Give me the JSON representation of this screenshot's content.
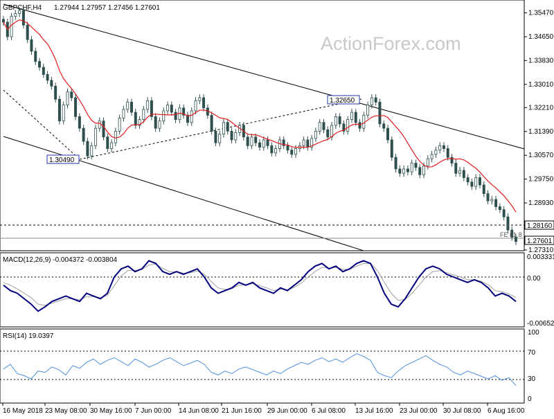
{
  "header": {
    "symbol": "GBPCHF,H4",
    "ohlc": "1.27944 1.27957 1.27456 1.27601"
  },
  "watermark": "ActionForex.com",
  "colors": {
    "candles": "#2f4f4f",
    "ma": "#e31a1c",
    "channel": "#000000",
    "macd_main": "#00007f",
    "macd_signal": "#a0a0a0",
    "rsi": "#4a90d9",
    "price_tag_bg": "#ffffff"
  },
  "chart_data": [
    {
      "type": "candlestick",
      "title": "GBPCHF,H4",
      "x_labels": [
        "16 May 2018",
        "23 May 08:00",
        "30 May 16:00",
        "7 Jun 00:00",
        "14 Jun 08:00",
        "21 Jun 16:00",
        "29 Jun 00:00",
        "6 Jul 08:00",
        "13 Jul 16:00",
        "23 Jul 00:00",
        "30 Jul 08:00",
        "6 Aug 16:00"
      ],
      "y_ticks": [
        "1.35470",
        "1.34650",
        "1.33830",
        "1.33010",
        "1.32210",
        "1.31390",
        "1.30570",
        "1.29750",
        "1.28930",
        "1.27310"
      ],
      "ylim": [
        1.2731,
        1.3589
      ],
      "price_tags": [
        {
          "label": "1.28160",
          "value": 1.2816
        },
        {
          "label": "1.27601",
          "value": 1.27601
        }
      ],
      "annotations": [
        {
          "label": "1.30490",
          "value": 1.3049
        },
        {
          "label": "1.32650",
          "value": 1.3265
        },
        {
          "label": "FE 61.8",
          "value": 1.2776
        }
      ],
      "closes": [
        1.3515,
        1.3465,
        1.3535,
        1.3545,
        1.3555,
        1.3505,
        1.3455,
        1.3415,
        1.338,
        1.336,
        1.3335,
        1.3315,
        1.3295,
        1.325,
        1.3175,
        1.323,
        1.3275,
        1.3255,
        1.319,
        1.315,
        1.3105,
        1.3055,
        1.309,
        1.315,
        1.3175,
        1.312,
        1.308,
        1.31,
        1.314,
        1.3185,
        1.3215,
        1.324,
        1.3205,
        1.316,
        1.318,
        1.3215,
        1.3245,
        1.319,
        1.315,
        1.3175,
        1.321,
        1.323,
        1.3205,
        1.318,
        1.322,
        1.3195,
        1.317,
        1.321,
        1.3245,
        1.3255,
        1.322,
        1.3195,
        1.314,
        1.31,
        1.313,
        1.317,
        1.314,
        1.311,
        1.3135,
        1.316,
        1.312,
        1.309,
        1.312,
        1.31,
        1.3085,
        1.311,
        1.309,
        1.3065,
        1.308,
        1.311,
        1.309,
        1.3075,
        1.306,
        1.308,
        1.309,
        1.311,
        1.3085,
        1.3115,
        1.314,
        1.317,
        1.3145,
        1.312,
        1.316,
        1.319,
        1.3165,
        1.314,
        1.318,
        1.3205,
        1.317,
        1.315,
        1.3195,
        1.323,
        1.3255,
        1.324,
        1.3165,
        1.315,
        1.311,
        1.305,
        1.301,
        1.2995,
        1.301,
        1.3,
        1.303,
        1.3015,
        1.299,
        1.302,
        1.3045,
        1.306,
        1.3075,
        1.309,
        1.308,
        1.305,
        1.303,
        1.2995,
        1.3005,
        1.298,
        1.2965,
        1.295,
        1.298,
        1.2955,
        1.2925,
        1.29,
        1.2905,
        1.288,
        1.287,
        1.2845,
        1.28,
        1.2775,
        1.276
      ]
    },
    {
      "type": "line",
      "title": "MACD(12,26,9) -0.004372 -0.003804",
      "y_ticks": [
        "0.003331",
        "0.00",
        "-0.006521"
      ],
      "ylim": [
        -0.006521,
        0.003331
      ],
      "series": [
        {
          "name": "",
          "values": [
            -0.0015,
            -0.0025,
            -0.003,
            -0.004,
            -0.005,
            -0.0063,
            -0.0055,
            -0.0045,
            -0.004,
            -0.0035,
            -0.004,
            -0.0045,
            -0.003,
            -0.0035,
            -0.004,
            -0.003,
            0.0,
            0.0015,
            0.002,
            0.001,
            0.0015,
            0.003,
            0.0025,
            0.001,
            0.0005,
            0.001,
            0.0005,
            0.001,
            0.0015,
            0.0,
            -0.002,
            -0.003,
            -0.0025,
            -0.002,
            -0.001,
            -0.0015,
            -0.001,
            -0.002,
            -0.0025,
            -0.003,
            -0.002,
            -0.0025,
            -0.0015,
            -0.0005,
            0.001,
            0.002,
            0.0025,
            0.0015,
            0.002,
            0.001,
            0.0015,
            0.0025,
            0.003,
            0.0025,
            0.0,
            -0.003,
            -0.005,
            -0.0055,
            -0.004,
            -0.002,
            0.0,
            0.0015,
            0.002,
            0.0015,
            0.0005,
            0.0,
            -0.0005,
            -0.001,
            -0.0005,
            -0.001,
            -0.002,
            -0.0035,
            -0.003,
            -0.0035,
            -0.0045
          ]
        },
        {
          "name": "",
          "values": [
            -0.001,
            -0.0015,
            -0.0022,
            -0.003,
            -0.0038,
            -0.005,
            -0.0052,
            -0.0048,
            -0.0044,
            -0.004,
            -0.004,
            -0.0042,
            -0.0036,
            -0.0036,
            -0.0038,
            -0.0034,
            -0.0016,
            0.0002,
            0.0012,
            0.0012,
            0.0014,
            0.0022,
            0.0024,
            0.0016,
            0.001,
            0.001,
            0.0007,
            0.0008,
            0.0011,
            0.0005,
            -0.0008,
            -0.002,
            -0.0023,
            -0.0021,
            -0.0015,
            -0.0015,
            -0.0012,
            -0.0016,
            -0.002,
            -0.0025,
            -0.0022,
            -0.0024,
            -0.0019,
            -0.0011,
            0.0,
            0.001,
            0.0018,
            0.0016,
            0.0018,
            0.0014,
            0.0014,
            0.002,
            0.0025,
            0.0025,
            0.0012,
            -0.001,
            -0.003,
            -0.0043,
            -0.0041,
            -0.003,
            -0.0015,
            0.0,
            0.001,
            0.0012,
            0.0008,
            0.0004,
            0.0,
            -0.0005,
            -0.0005,
            -0.0008,
            -0.0014,
            -0.0025,
            -0.0027,
            -0.0031,
            -0.0038
          ]
        }
      ]
    },
    {
      "type": "line",
      "title": "RSI(14) 19.0397",
      "y_ticks": [
        "100",
        "70",
        "30",
        "0"
      ],
      "ylim": [
        0,
        100
      ],
      "series": [
        {
          "name": "",
          "values": [
            45,
            52,
            38,
            35,
            30,
            42,
            40,
            48,
            44,
            36,
            50,
            46,
            55,
            60,
            52,
            58,
            62,
            56,
            50,
            60,
            55,
            48,
            52,
            58,
            62,
            56,
            50,
            54,
            58,
            52,
            40,
            36,
            42,
            38,
            45,
            48,
            44,
            40,
            36,
            42,
            38,
            45,
            50,
            55,
            52,
            58,
            62,
            56,
            60,
            55,
            62,
            68,
            64,
            58,
            40,
            35,
            32,
            42,
            50,
            55,
            60,
            65,
            58,
            52,
            48,
            40,
            36,
            42,
            38,
            34,
            30,
            35,
            28,
            32,
            20
          ]
        }
      ]
    }
  ]
}
